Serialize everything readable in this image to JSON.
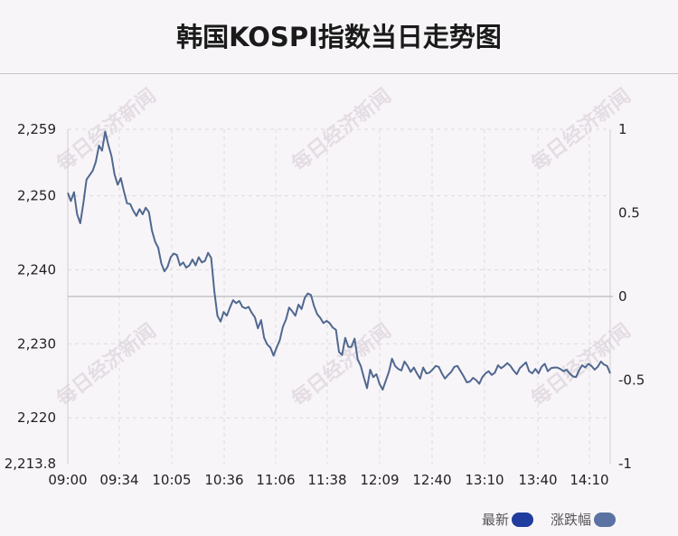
{
  "title": "韩国KOSPI指数当日走势图",
  "watermark": "每日经济新闻",
  "colors": {
    "line": "#506890",
    "legend_latest": "#1f3c9e",
    "legend_change": "#5a73a3",
    "grid": "#dcdcdc",
    "baseline": "#c4c4c4"
  },
  "legend": {
    "latest_label": "最新",
    "change_label": "涨跌幅"
  },
  "chart_data": {
    "type": "line",
    "x_ticks": [
      "09:00",
      "09:34",
      "10:05",
      "10:36",
      "11:06",
      "11:38",
      "12:09",
      "12:40",
      "13:10",
      "13:40",
      "14:10"
    ],
    "y_left_ticks": [
      "2,259",
      "2,250",
      "2,240",
      "2,230",
      "2,220",
      "2,213.8"
    ],
    "y_left_range": [
      2213.8,
      2259
    ],
    "y_right_ticks": [
      "1",
      "0.5",
      "0",
      "-0.5",
      "-1"
    ],
    "y_right_range": [
      -1,
      1
    ],
    "baseline_value": 2236.4,
    "series": [
      {
        "x_minutes": [
          0,
          2,
          4,
          6,
          8,
          10,
          12,
          14,
          16,
          18,
          20,
          22,
          24,
          26,
          28,
          30,
          32,
          34,
          36,
          38,
          40,
          42,
          44,
          46,
          48,
          50,
          52,
          54,
          56,
          58,
          60,
          62,
          64,
          66,
          68,
          70,
          72,
          74,
          76,
          78,
          80,
          82,
          84,
          86,
          88,
          90,
          92,
          94,
          96,
          98,
          100,
          102,
          104,
          106,
          108,
          110,
          112,
          114,
          116,
          118,
          120,
          122,
          124,
          126,
          128,
          130,
          132,
          134,
          136,
          138,
          140,
          142,
          144,
          146,
          148,
          150,
          152,
          154,
          156,
          158,
          160,
          162,
          164,
          166,
          168,
          170,
          172,
          174,
          176,
          178,
          180,
          182,
          184,
          186,
          188,
          190,
          192,
          194,
          196,
          198,
          200,
          202,
          204,
          206,
          208,
          210,
          212,
          214,
          216,
          218,
          220,
          222,
          224,
          226,
          228,
          230,
          232,
          234,
          236,
          238,
          240,
          242,
          244,
          246,
          248,
          250,
          252,
          254,
          256,
          258,
          260,
          262,
          264,
          266,
          268,
          270,
          272,
          274,
          276,
          278,
          280,
          282,
          284,
          286,
          288,
          290,
          292,
          294,
          296,
          298,
          300,
          302,
          304,
          306,
          308,
          310,
          312,
          314,
          316,
          318,
          320,
          322,
          324,
          326,
          328,
          330,
          332,
          334,
          336,
          338,
          340,
          342,
          344,
          346,
          348
        ],
        "values": [
          2250.4,
          2249.3,
          2250.5,
          2247.5,
          2246.3,
          2249.0,
          2252.2,
          2252.8,
          2253.4,
          2254.6,
          2256.8,
          2256.1,
          2258.7,
          2256.9,
          2255.4,
          2252.9,
          2251.5,
          2252.4,
          2250.6,
          2249.0,
          2248.9,
          2248.0,
          2247.3,
          2248.2,
          2247.5,
          2248.4,
          2247.8,
          2245.3,
          2243.8,
          2243.0,
          2240.9,
          2239.8,
          2240.4,
          2241.7,
          2242.2,
          2242.0,
          2240.6,
          2241.0,
          2240.3,
          2240.6,
          2241.4,
          2240.6,
          2241.7,
          2241.0,
          2241.2,
          2242.3,
          2241.6,
          2237.1,
          2233.8,
          2233.0,
          2234.3,
          2233.8,
          2234.9,
          2235.9,
          2235.5,
          2235.8,
          2235.0,
          2234.8,
          2235.0,
          2234.2,
          2233.6,
          2232.1,
          2233.2,
          2230.8,
          2229.9,
          2229.5,
          2228.4,
          2229.5,
          2230.5,
          2232.3,
          2233.3,
          2234.9,
          2234.4,
          2233.8,
          2235.3,
          2234.7,
          2236.2,
          2236.8,
          2236.6,
          2235.1,
          2234.0,
          2233.5,
          2232.8,
          2233.1,
          2232.8,
          2232.2,
          2231.9,
          2228.9,
          2228.5,
          2230.8,
          2229.6,
          2229.6,
          2230.7,
          2227.9,
          2227.0,
          2225.4,
          2224.0,
          2226.5,
          2225.5,
          2225.9,
          2224.6,
          2223.8,
          2225.0,
          2226.2,
          2228.0,
          2227.0,
          2226.6,
          2226.4,
          2227.6,
          2227.0,
          2226.2,
          2226.8,
          2226.0,
          2225.3,
          2226.8,
          2226.0,
          2226.1,
          2226.5,
          2227.0,
          2226.9,
          2226.0,
          2225.3,
          2225.8,
          2226.2,
          2226.9,
          2227.0,
          2226.3,
          2225.6,
          2224.8,
          2224.9,
          2225.4,
          2225.1,
          2224.6,
          2225.5,
          2226.0,
          2226.3,
          2225.8,
          2226.1,
          2227.1,
          2226.7,
          2227.0,
          2227.4,
          2227.0,
          2226.4,
          2225.9,
          2226.7,
          2227.1,
          2227.5,
          2226.3,
          2226.0,
          2226.6,
          2226.0,
          2226.9,
          2227.3,
          2226.3,
          2226.7,
          2226.8,
          2226.8,
          2226.6,
          2226.3,
          2226.5,
          2226.0,
          2225.6,
          2225.5,
          2226.4,
          2227.1,
          2226.8,
          2227.3,
          2227.0,
          2226.5,
          2226.9,
          2227.6,
          2227.2,
          2227.0,
          2226.0
        ]
      }
    ],
    "grid": true,
    "legend_position": "bottom-right"
  }
}
